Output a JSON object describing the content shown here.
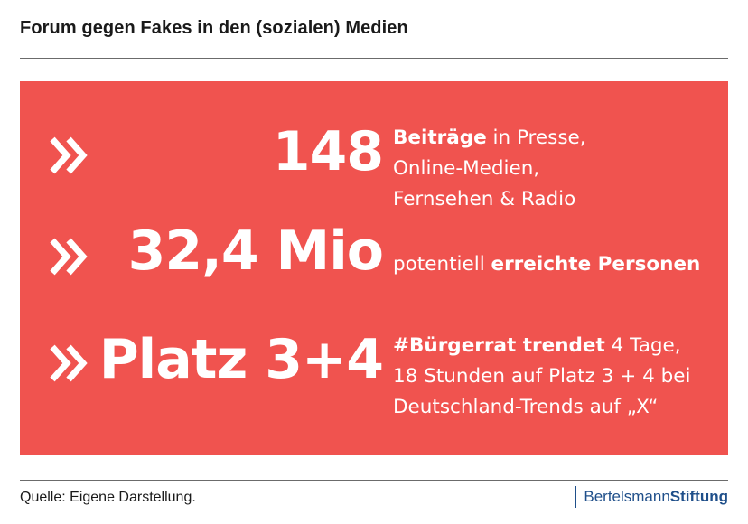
{
  "title": "Forum gegen Fakes in den (sozialen) Medien",
  "panel_color": "#f0534f",
  "stats": [
    {
      "icon": "double-chevron-right-icon",
      "value": "148",
      "desc_lines": [
        {
          "bold": "Beiträge",
          "normal": " in Presse,"
        },
        {
          "bold": "",
          "normal": "Online-Medien,"
        },
        {
          "bold": "",
          "normal": "Fernsehen & Radio"
        }
      ]
    },
    {
      "icon": "double-chevron-right-icon",
      "value": "32,4 Mio",
      "desc_lines": [
        {
          "normal_before": "potentiell ",
          "bold": "erreichte Personen"
        }
      ]
    },
    {
      "icon": "double-chevron-right-icon",
      "value": "Platz 3+4",
      "desc_lines": [
        {
          "bold": "#Bürgerrat trendet",
          "normal": " 4 Tage,"
        },
        {
          "bold": "",
          "normal": "18 Stunden auf Platz 3 + 4 bei"
        },
        {
          "bold": "",
          "normal": "Deutschland-Trends auf „X“"
        }
      ]
    }
  ],
  "footer": {
    "source": "Quelle: Eigene Darstellung.",
    "logo_part1": "Bertelsmann",
    "logo_part2": "Stiftung",
    "logo_color": "#1f4f8a"
  }
}
